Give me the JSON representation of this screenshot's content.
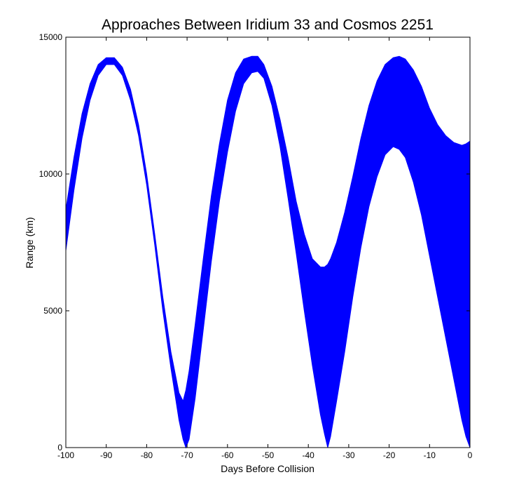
{
  "chart_data": {
    "type": "area",
    "title": "Approaches Between Iridium 33 and Cosmos 2251",
    "xlabel": "Days Before Collision",
    "ylabel": "Range (km)",
    "xlim": [
      -100,
      0
    ],
    "ylim": [
      0,
      15000
    ],
    "xticks": [
      "-100",
      "-90",
      "-80",
      "-70",
      "-60",
      "-50",
      "-40",
      "-30",
      "-20",
      "-10",
      "0"
    ],
    "yticks": [
      "0",
      "5000",
      "10000",
      "15000"
    ],
    "grid": false,
    "fill_color": "#0000ff",
    "series": [
      {
        "name": "",
        "x": [
          -100,
          -98,
          -96,
          -94,
          -92,
          -90,
          -88,
          -86,
          -84,
          -82,
          -80,
          -78,
          -76,
          -74,
          -72,
          -71,
          -70.3,
          -69.5,
          -68,
          -66,
          -64,
          -62,
          -60,
          -58,
          -56,
          -54,
          -52.5,
          -51,
          -49,
          -47,
          -45,
          -43,
          -41,
          -39,
          -37,
          -36,
          -35.2,
          -34.5,
          -33,
          -31,
          -29,
          -27,
          -25,
          -23,
          -21,
          -19,
          -17.5,
          -16,
          -14,
          -12,
          -10,
          -8,
          -6,
          -4,
          -2,
          -1,
          0
        ],
        "upper": [
          8700,
          10600,
          12200,
          13300,
          14000,
          14250,
          14250,
          13900,
          13100,
          11800,
          10000,
          7800,
          5500,
          3500,
          2000,
          1700,
          2100,
          2800,
          4500,
          6900,
          9200,
          11100,
          12700,
          13700,
          14200,
          14300,
          14300,
          14000,
          13200,
          12000,
          10600,
          9000,
          7800,
          6900,
          6600,
          6600,
          6700,
          6900,
          7500,
          8600,
          9900,
          11300,
          12500,
          13400,
          14000,
          14250,
          14300,
          14200,
          13800,
          13200,
          12400,
          11800,
          11400,
          11150,
          11050,
          11100,
          11200
        ],
        "lower": [
          7200,
          9400,
          11300,
          12700,
          13600,
          14000,
          14000,
          13600,
          12700,
          11400,
          9600,
          7400,
          5000,
          2900,
          1000,
          300,
          0,
          300,
          1800,
          4300,
          6800,
          9000,
          10800,
          12300,
          13300,
          13700,
          13750,
          13500,
          12500,
          11000,
          9100,
          7100,
          5000,
          3000,
          1200,
          500,
          0,
          400,
          1700,
          3500,
          5500,
          7300,
          8800,
          9900,
          10700,
          11000,
          10900,
          10600,
          9700,
          8500,
          7000,
          5500,
          4000,
          2500,
          1000,
          400,
          0
        ]
      }
    ]
  }
}
